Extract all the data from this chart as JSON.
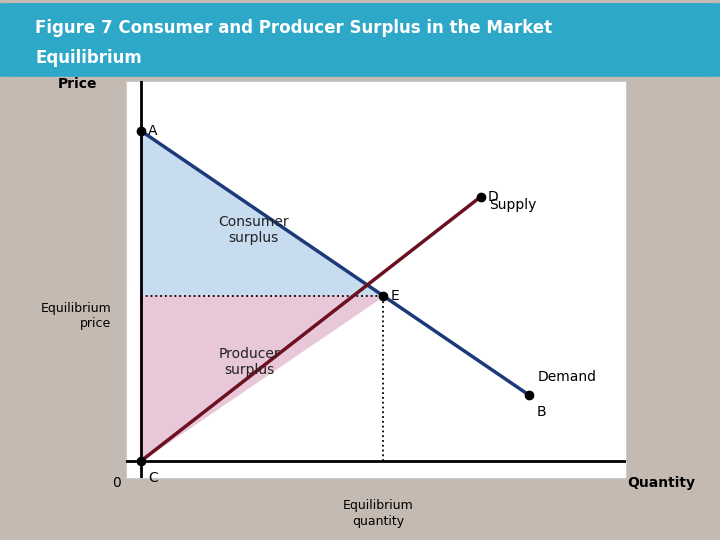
{
  "title_line1": "Figure 7 Consumer and Producer Surplus in the Market",
  "title_line2": "Equilibrium",
  "title_bg_color": "#2EA8C8",
  "title_text_color": "#FFFFFF",
  "bg_color": "#C4BAB2",
  "plot_bg_color": "#FFFFFF",
  "plot_border_color": "#D8D8D8",
  "demand_color": "#1C3A7A",
  "supply_color": "#6B1020",
  "consumer_surplus_color": "#C8DCF0",
  "producer_surplus_color": "#E8C8D8",
  "A": [
    0,
    10
  ],
  "B": [
    8,
    2
  ],
  "C": [
    0,
    0
  ],
  "D": [
    7,
    8
  ],
  "E": [
    5,
    5
  ],
  "eq_qty": 5,
  "eq_price": 5,
  "xlabel": "Quantity",
  "ylabel": "Price",
  "eq_qty_label": "Equilibrium\nquantity",
  "eq_price_label": "Equilibrium\nprice",
  "zero_label": "0",
  "consumer_surplus_label": "Consumer\nsurplus",
  "producer_surplus_label": "Producer\nsurplus",
  "demand_label": "Demand",
  "supply_label": "Supply",
  "point_size": 6,
  "line_width": 2.5,
  "xlim": [
    -0.3,
    10.0
  ],
  "ylim": [
    -0.5,
    11.5
  ]
}
